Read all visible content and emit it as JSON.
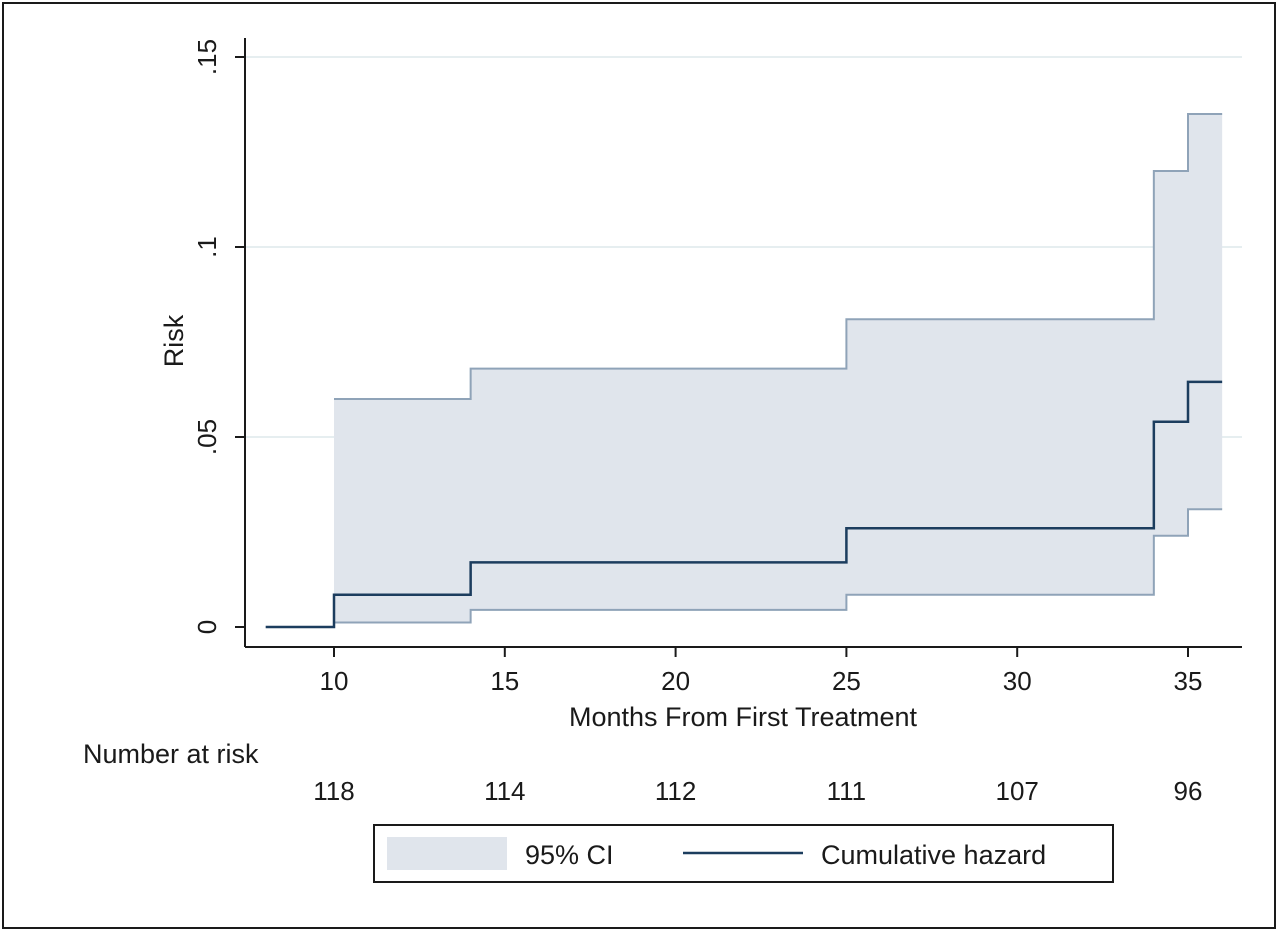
{
  "chart_data": {
    "type": "line",
    "subtype": "step",
    "title": "",
    "xlabel": "Months From First Treatment",
    "ylabel": "Risk",
    "xlim": [
      8,
      36
    ],
    "ylim": [
      0,
      0.15
    ],
    "x_ticks": [
      10,
      15,
      20,
      25,
      30,
      35
    ],
    "x_tick_labels": [
      "10",
      "15",
      "20",
      "25",
      "30",
      "35"
    ],
    "y_ticks": [
      0,
      0.05,
      0.1,
      0.15
    ],
    "y_tick_labels": [
      "0",
      ".05",
      ".1",
      ".15"
    ],
    "grid": true,
    "series": [
      {
        "name": "Cumulative hazard",
        "x": [
          8,
          10,
          14,
          25,
          34,
          35,
          36
        ],
        "y": [
          0,
          0.0085,
          0.017,
          0.026,
          0.054,
          0.0645,
          0.0645
        ]
      }
    ],
    "ci": {
      "name": "95% CI",
      "x": [
        10,
        14,
        25,
        34,
        35,
        36
      ],
      "lower": [
        0.0012,
        0.0045,
        0.0085,
        0.024,
        0.031,
        0.031
      ],
      "upper": [
        0.06,
        0.068,
        0.081,
        0.12,
        0.135,
        0.135
      ]
    },
    "risk_table": {
      "label": "Number at risk",
      "x": [
        10,
        15,
        20,
        25,
        30,
        35
      ],
      "values": [
        "118",
        "114",
        "112",
        "111",
        "107",
        "96"
      ]
    },
    "legend": {
      "placement": "bottom",
      "items": [
        "95% CI",
        "Cumulative hazard"
      ]
    },
    "colors": {
      "ci_fill": "#e0e5ec",
      "ci_line": "#8fa3b8",
      "hazard_line": "#1c3d5e",
      "grid": "#e6eef0",
      "axis": "#1a1a1a"
    }
  }
}
